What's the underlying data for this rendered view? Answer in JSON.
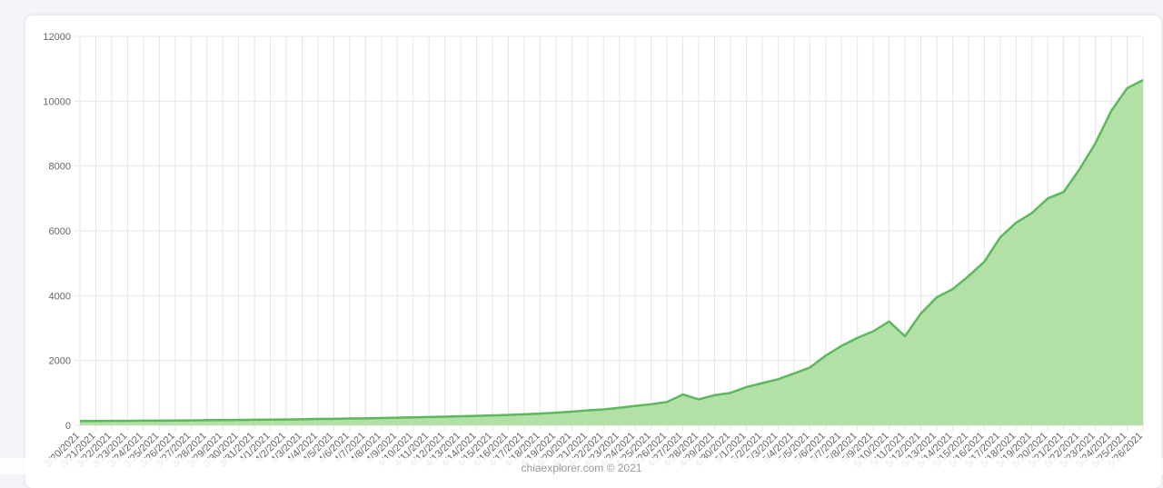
{
  "chart_data": {
    "type": "area",
    "categories": [
      "3/20/2021",
      "3/21/2021",
      "3/22/2021",
      "3/23/2021",
      "3/24/2021",
      "3/25/2021",
      "3/26/2021",
      "3/27/2021",
      "3/28/2021",
      "3/29/2021",
      "3/30/2021",
      "3/31/2021",
      "4/1/2021",
      "4/2/2021",
      "4/3/2021",
      "4/4/2021",
      "4/5/2021",
      "4/6/2021",
      "4/7/2021",
      "4/8/2021",
      "4/9/2021",
      "4/10/2021",
      "4/11/2021",
      "4/12/2021",
      "4/13/2021",
      "4/14/2021",
      "4/15/2021",
      "4/16/2021",
      "4/17/2021",
      "4/18/2021",
      "4/19/2021",
      "4/20/2021",
      "4/21/2021",
      "4/22/2021",
      "4/23/2021",
      "4/24/2021",
      "4/25/2021",
      "4/26/2021",
      "4/27/2021",
      "4/28/2021",
      "4/29/2021",
      "4/30/2021",
      "5/1/2021",
      "5/2/2021",
      "5/3/2021",
      "5/4/2021",
      "5/5/2021",
      "5/6/2021",
      "5/7/2021",
      "5/8/2021",
      "5/9/2021",
      "5/10/2021",
      "5/11/2021",
      "5/12/2021",
      "5/13/2021",
      "5/14/2021",
      "5/15/2021",
      "5/16/2021",
      "5/17/2021",
      "5/18/2021",
      "5/19/2021",
      "5/20/2021",
      "5/21/2021",
      "5/22/2021",
      "5/23/2021",
      "5/24/2021",
      "5/25/2021",
      "5/26/2021"
    ],
    "series": [
      {
        "color": "#5cb85c",
        "fill": "#b2e0a6",
        "values": [
          130,
          132,
          135,
          138,
          142,
          145,
          148,
          152,
          156,
          160,
          165,
          170,
          175,
          180,
          185,
          195,
          200,
          210,
          215,
          225,
          235,
          245,
          255,
          265,
          280,
          290,
          305,
          320,
          340,
          360,
          390,
          420,
          460,
          490,
          540,
          600,
          650,
          720,
          950,
          800,
          930,
          1000,
          1180,
          1300,
          1420,
          1600,
          1780,
          2150,
          2450,
          2700,
          2900,
          3200,
          2750,
          3450,
          3950,
          4200,
          4600,
          5050,
          5800,
          6250,
          6550,
          7000,
          7200,
          7900,
          8700,
          9700,
          10400,
          10650
        ]
      }
    ],
    "ylim": [
      0,
      12000
    ],
    "yticks": [
      0,
      2000,
      4000,
      6000,
      8000,
      10000,
      12000
    ],
    "grid": true
  },
  "footer": "chiaexplorer.com © 2021"
}
